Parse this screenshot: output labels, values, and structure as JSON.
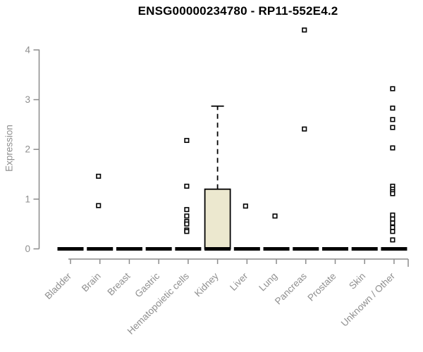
{
  "chart_data": {
    "type": "boxplot",
    "title": "ENSG00000234780 - RP11-552E4.2",
    "ylabel": "Expression",
    "ylim": [
      0,
      4.45
    ],
    "yticks": [
      "0",
      "1",
      "2",
      "3",
      "4"
    ],
    "grid": false,
    "legend": null,
    "categories": [
      "Bladder",
      "Brain",
      "Breast",
      "Gastric",
      "Hematopoietic cells",
      "Kidney",
      "Liver",
      "Lung",
      "Pancreas",
      "Prostate",
      "Skin",
      "Unknown / Other"
    ],
    "boxes": [
      {
        "category": "Bladder",
        "q1": 0,
        "median": 0,
        "q3": 0,
        "whisker_low": 0,
        "whisker_high": 0,
        "outliers": []
      },
      {
        "category": "Brain",
        "q1": 0,
        "median": 0,
        "q3": 0,
        "whisker_low": 0,
        "whisker_high": 0,
        "outliers": [
          1.46,
          0.87
        ]
      },
      {
        "category": "Breast",
        "q1": 0,
        "median": 0,
        "q3": 0,
        "whisker_low": 0,
        "whisker_high": 0,
        "outliers": []
      },
      {
        "category": "Gastric",
        "q1": 0,
        "median": 0,
        "q3": 0,
        "whisker_low": 0,
        "whisker_high": 0,
        "outliers": []
      },
      {
        "category": "Hematopoietic cells",
        "q1": 0,
        "median": 0,
        "q3": 0,
        "whisker_low": 0,
        "whisker_high": 0,
        "outliers": [
          2.18,
          1.26,
          0.79,
          0.66,
          0.55,
          0.5,
          0.38,
          0.35
        ]
      },
      {
        "category": "Kidney",
        "q1": 0,
        "median": 0,
        "q3": 1.2,
        "whisker_low": 0,
        "whisker_high": 2.87,
        "outliers": []
      },
      {
        "category": "Liver",
        "q1": 0,
        "median": 0,
        "q3": 0,
        "whisker_low": 0,
        "whisker_high": 0,
        "outliers": [
          0.86
        ]
      },
      {
        "category": "Lung",
        "q1": 0,
        "median": 0,
        "q3": 0,
        "whisker_low": 0,
        "whisker_high": 0,
        "outliers": [
          0.66
        ]
      },
      {
        "category": "Pancreas",
        "q1": 0,
        "median": 0,
        "q3": 0,
        "whisker_low": 0,
        "whisker_high": 0,
        "outliers": [
          4.4,
          2.41
        ]
      },
      {
        "category": "Prostate",
        "q1": 0,
        "median": 0,
        "q3": 0,
        "whisker_low": 0,
        "whisker_high": 0,
        "outliers": []
      },
      {
        "category": "Skin",
        "q1": 0,
        "median": 0,
        "q3": 0,
        "whisker_low": 0,
        "whisker_high": 0,
        "outliers": []
      },
      {
        "category": "Unknown / Other",
        "q1": 0,
        "median": 0,
        "q3": 0,
        "whisker_low": 0,
        "whisker_high": 0,
        "outliers": [
          3.22,
          2.83,
          2.6,
          2.44,
          2.03,
          1.26,
          1.2,
          1.15,
          1.11,
          0.68,
          0.6,
          0.52,
          0.43,
          0.35,
          0.18
        ]
      }
    ],
    "colors": {
      "box_fill": "#ece8cf",
      "box_stroke": "#000000",
      "median": "#000000",
      "whisker": "#000000",
      "outlier_stroke": "#000000",
      "outlier_fill": "#ffffff",
      "axis": "#8c8c8c",
      "tick_label": "#8f8f8f",
      "title": "#000000",
      "background": "#ffffff"
    }
  }
}
